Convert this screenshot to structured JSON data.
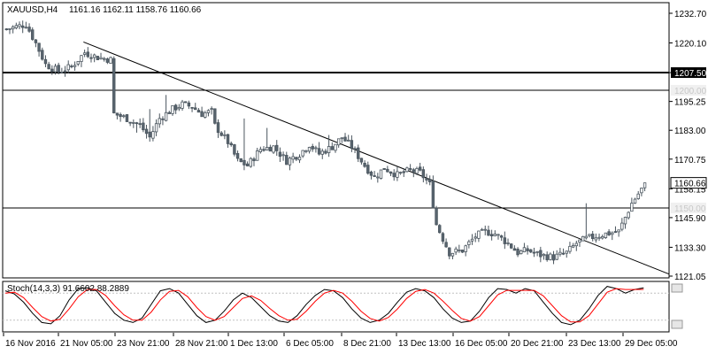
{
  "header": {
    "symbol": "XAUUSD,H4",
    "ohlc": "1161.16 1162.11 1158.76 1160.66"
  },
  "stoch_header": "Stoch(14,3,3) 91.6602 88.2889",
  "current_price_label": "1160.66",
  "colors": {
    "candle_bull": "#ffffff",
    "candle_bear": "#5a6670",
    "candle_outline": "#4a555e",
    "trendline": "#000000",
    "stoch_main": "#000000",
    "stoch_signal": "#ff0000",
    "level_label_bg": "#000000",
    "level_label_text": "#ffffff"
  },
  "chart_data": [
    {
      "type": "candlestick",
      "title": "XAUUSD,H4",
      "ylim": [
        1121.05,
        1232.7
      ],
      "y_ticks": [
        "1232.70",
        "1220.10",
        "1207.50",
        "1195.25",
        "1183.00",
        "1170.75",
        "1158.15",
        "1145.90",
        "1133.30",
        "1121.05"
      ],
      "x_ticks": [
        "16 Nov 2016",
        "21 Nov 05:00",
        "23 Nov 21:00",
        "28 Nov 21:00",
        "1 Dec 13:00",
        "6 Dec 05:00",
        "8 Dec 21:00",
        "13 Dec 13:00",
        "16 Dec 05:00",
        "20 Dec 21:00",
        "23 Dec 13:00",
        "29 Dec 05:00"
      ],
      "horizontal_levels": [
        {
          "value": 1207.5,
          "label": "1207.50",
          "style": "thick"
        },
        {
          "value": 1200.0,
          "label": "1200.00",
          "style": "thin"
        },
        {
          "value": 1150.0,
          "label": "1150.00",
          "style": "thin"
        }
      ],
      "trendline": {
        "start": {
          "bar": 24,
          "price": 1220.5
        },
        "end": {
          "bar": 200,
          "price": 1124.0
        }
      },
      "close_path": [
        [
          0,
          1226
        ],
        [
          6,
          1228
        ],
        [
          9,
          1220
        ],
        [
          12,
          1211
        ],
        [
          16,
          1208
        ],
        [
          20,
          1210
        ],
        [
          24,
          1216
        ],
        [
          28,
          1214
        ],
        [
          32,
          1213
        ],
        [
          33,
          1190
        ],
        [
          37,
          1188
        ],
        [
          41,
          1185
        ],
        [
          44,
          1180
        ],
        [
          47,
          1188
        ],
        [
          51,
          1192
        ],
        [
          54,
          1194
        ],
        [
          57,
          1193
        ],
        [
          60,
          1190
        ],
        [
          63,
          1191
        ],
        [
          64,
          1185
        ],
        [
          68,
          1178
        ],
        [
          71,
          1170
        ],
        [
          74,
          1168
        ],
        [
          78,
          1175
        ],
        [
          82,
          1176
        ],
        [
          86,
          1170
        ],
        [
          90,
          1173
        ],
        [
          93,
          1177
        ],
        [
          96,
          1173
        ],
        [
          100,
          1176
        ],
        [
          103,
          1180
        ],
        [
          106,
          1176
        ],
        [
          110,
          1168
        ],
        [
          113,
          1163
        ],
        [
          116,
          1167
        ],
        [
          120,
          1164
        ],
        [
          124,
          1166
        ],
        [
          127,
          1165
        ],
        [
          130,
          1160
        ],
        [
          132,
          1143
        ],
        [
          136,
          1131
        ],
        [
          140,
          1132
        ],
        [
          144,
          1138
        ],
        [
          147,
          1140
        ],
        [
          150,
          1139
        ],
        [
          154,
          1135
        ],
        [
          157,
          1131
        ],
        [
          160,
          1132
        ],
        [
          164,
          1130
        ],
        [
          168,
          1129
        ],
        [
          172,
          1131
        ],
        [
          175,
          1135
        ],
        [
          178,
          1137
        ],
        [
          181,
          1138
        ],
        [
          184,
          1139
        ],
        [
          188,
          1140
        ],
        [
          192,
          1152
        ],
        [
          195,
          1158
        ],
        [
          196,
          1160.66
        ]
      ],
      "spikes": [
        [
          40,
          1182
        ],
        [
          44,
          1192
        ],
        [
          49,
          1198
        ],
        [
          73,
          1188
        ],
        [
          80,
          1184
        ],
        [
          96,
          1178
        ],
        [
          99,
          1181
        ],
        [
          128,
          1166
        ],
        [
          153,
          1140
        ],
        [
          178,
          1152
        ]
      ],
      "candle_count": 197,
      "last_close": 1160.66
    },
    {
      "type": "line",
      "title": "Stoch(14,3,3)",
      "ylim": [
        0,
        100
      ],
      "levels": [
        80,
        20
      ],
      "series": [
        {
          "name": "Main",
          "value": 91.6602,
          "values": [
            85,
            78,
            60,
            35,
            15,
            12,
            30,
            65,
            90,
            92,
            85,
            60,
            35,
            20,
            15,
            25,
            55,
            85,
            90,
            80,
            55,
            30,
            15,
            20,
            40,
            65,
            80,
            70,
            50,
            30,
            18,
            15,
            30,
            55,
            75,
            88,
            85,
            70,
            45,
            25,
            15,
            20,
            35,
            60,
            82,
            90,
            85,
            70,
            45,
            25,
            15,
            18,
            40,
            70,
            90,
            88,
            80,
            90,
            85,
            60,
            35,
            15,
            10,
            20,
            45,
            75,
            95,
            90,
            80,
            88,
            91.66
          ]
        },
        {
          "name": "Signal",
          "value": 88.2889,
          "values": [
            80,
            82,
            70,
            48,
            28,
            18,
            22,
            45,
            72,
            88,
            88,
            75,
            52,
            32,
            20,
            20,
            38,
            65,
            84,
            86,
            72,
            48,
            28,
            20,
            28,
            48,
            68,
            74,
            64,
            46,
            30,
            20,
            22,
            40,
            62,
            80,
            86,
            80,
            62,
            40,
            24,
            18,
            26,
            45,
            68,
            84,
            88,
            80,
            62,
            42,
            24,
            18,
            28,
            52,
            76,
            86,
            86,
            86,
            86,
            74,
            52,
            30,
            16,
            16,
            30,
            56,
            82,
            90,
            88,
            88,
            88.29
          ]
        }
      ],
      "x_ticks": [
        "16 Nov 2016",
        "21 Nov 05:00",
        "23 Nov 21:00",
        "28 Nov 21:00",
        "1 Dec 13:00",
        "6 Dec 05:00",
        "8 Dec 21:00",
        "13 Dec 13:00",
        "16 Dec 05:00",
        "20 Dec 21:00",
        "23 Dec 13:00",
        "29 Dec 05:00"
      ]
    }
  ]
}
